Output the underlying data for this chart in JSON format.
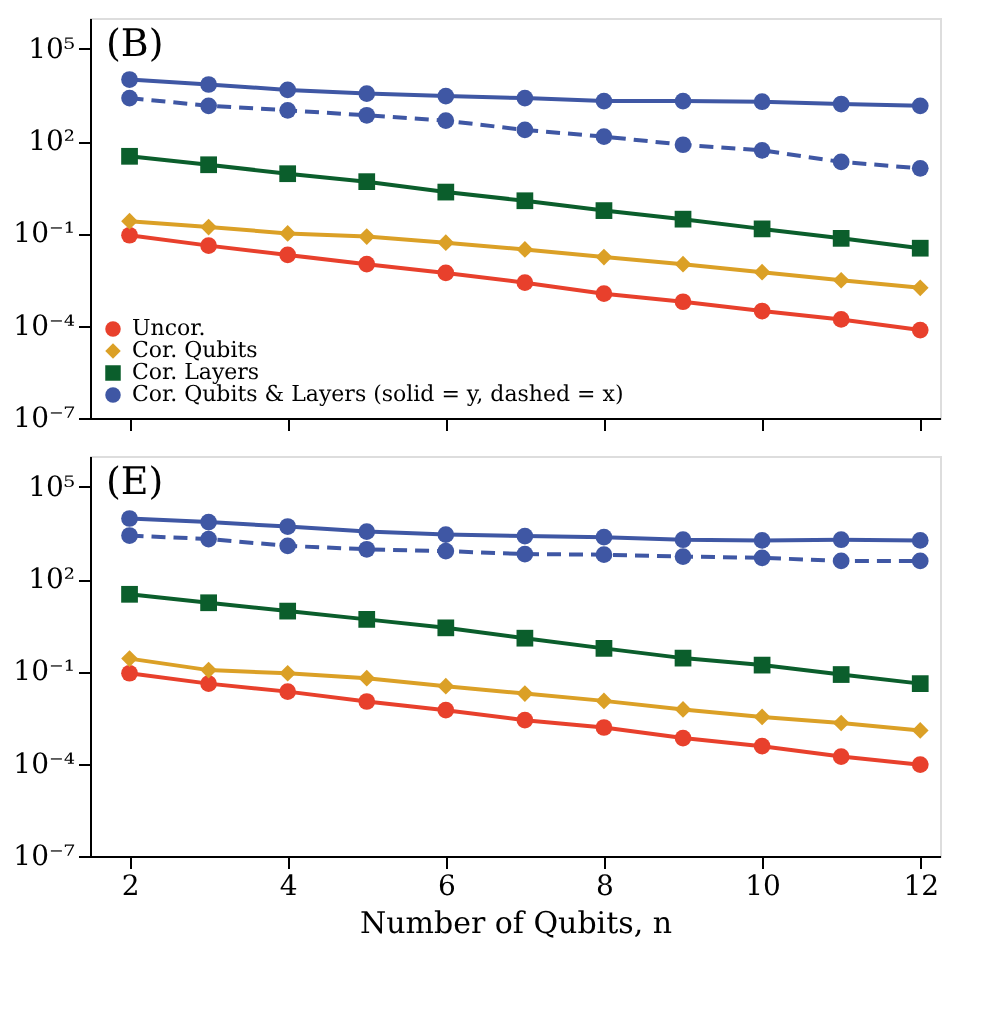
{
  "chart_data": [
    {
      "type": "line",
      "title": "(B)",
      "log": "y",
      "xlim": [
        1.5,
        12.25
      ],
      "xticks": [
        2,
        4,
        6,
        8,
        10,
        12
      ],
      "ylim": [
        1e-07,
        1000000
      ],
      "yticks": [
        {
          "value": 1e-07,
          "label": "10⁻⁷"
        },
        {
          "value": 0.0001,
          "label": "10⁻⁴"
        },
        {
          "value": 0.1,
          "label": "10⁻¹"
        },
        {
          "value": 100,
          "label": "10²"
        },
        {
          "value": 100000,
          "label": "10⁵"
        }
      ],
      "tick_labels": "y",
      "grid": false,
      "legend": "bottom left",
      "x": [
        2,
        3,
        4,
        5,
        6,
        7,
        8,
        9,
        10,
        11,
        12
      ],
      "series": [
        {
          "name": "Uncor.",
          "color": "#e8402c",
          "marker": "circle",
          "line_style": "solid",
          "values": [
            0.087,
            0.04,
            0.02,
            0.01,
            0.0052,
            0.0025,
            0.0011,
            0.0006,
            0.0003,
            0.00016,
            7.2e-05
          ]
        },
        {
          "name": "Cor. Qubits",
          "color": "#dba026",
          "marker": "diamond",
          "line_style": "solid",
          "values": [
            0.25,
            0.16,
            0.1,
            0.079,
            0.05,
            0.03,
            0.017,
            0.01,
            0.0055,
            0.003,
            0.0017
          ]
        },
        {
          "name": "Cor. Layers",
          "color": "#0b5e2c",
          "marker": "square",
          "line_style": "solid",
          "values": [
            32,
            17,
            8.7,
            4.8,
            2.2,
            1.15,
            0.55,
            0.29,
            0.14,
            0.069,
            0.033
          ]
        },
        {
          "name": "Cor. Qubits & Layers (solid = y, dashed = x)",
          "color": "#3f57a4",
          "marker": "circle",
          "line_style": "solid",
          "values": [
            10000,
            6900,
            4600,
            3500,
            2900,
            2500,
            2000,
            2000,
            1900,
            1600,
            1400
          ]
        },
        {
          "color": "#3f57a4",
          "marker": "circle",
          "line_style": "dashed",
          "values": [
            2500,
            1400,
            1000,
            690,
            460,
            230,
            140,
            76,
            50,
            21,
            13
          ]
        }
      ]
    },
    {
      "type": "line",
      "title": "(E)",
      "log": "y",
      "xlabel": "Number of Qubits, n",
      "xlim": [
        1.5,
        12.25
      ],
      "xticks": [
        2,
        4,
        6,
        8,
        10,
        12
      ],
      "ylim": [
        1e-07,
        1000000
      ],
      "yticks": [
        {
          "value": 1e-07,
          "label": "10⁻⁷"
        },
        {
          "value": 0.0001,
          "label": "10⁻⁴"
        },
        {
          "value": 0.1,
          "label": "10⁻¹"
        },
        {
          "value": 100,
          "label": "10²"
        },
        {
          "value": 100000,
          "label": "10⁵"
        }
      ],
      "grid": false,
      "x": [
        2,
        3,
        4,
        5,
        6,
        7,
        8,
        9,
        10,
        11,
        12
      ],
      "series": [
        {
          "color": "#e8402c",
          "marker": "circle",
          "line_style": "solid",
          "values": [
            0.087,
            0.04,
            0.022,
            0.0105,
            0.0055,
            0.0026,
            0.0015,
            0.00068,
            0.00037,
            0.00017,
            9.3e-05
          ]
        },
        {
          "color": "#dba026",
          "marker": "diamond",
          "line_style": "solid",
          "values": [
            0.26,
            0.11,
            0.087,
            0.06,
            0.033,
            0.019,
            0.011,
            0.0058,
            0.0033,
            0.0021,
            0.0012
          ]
        },
        {
          "color": "#0b5e2c",
          "marker": "square",
          "line_style": "solid",
          "values": [
            32,
            17,
            9.1,
            4.9,
            2.6,
            1.2,
            0.56,
            0.27,
            0.16,
            0.079,
            0.04
          ]
        },
        {
          "color": "#3f57a4",
          "marker": "circle",
          "line_style": "solid",
          "values": [
            9300,
            7100,
            5100,
            3500,
            2800,
            2500,
            2300,
            1900,
            1800,
            1900,
            1800
          ]
        },
        {
          "color": "#3f57a4",
          "marker": "circle",
          "line_style": "dashed",
          "values": [
            2600,
            2000,
            1200,
            930,
            810,
            650,
            620,
            540,
            490,
            390,
            390
          ]
        }
      ]
    }
  ]
}
